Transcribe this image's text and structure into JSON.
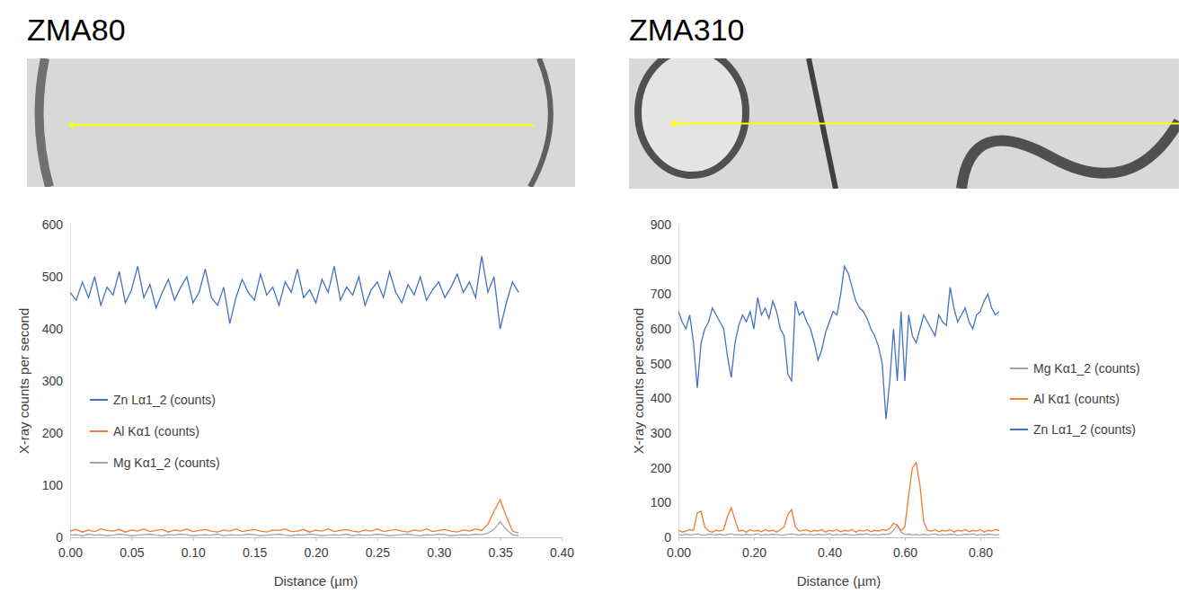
{
  "chart_data": [
    {
      "type": "line",
      "title": "ZMA80",
      "x_label": "Distance (µm)",
      "y_label": "X-ray counts per second",
      "x": [
        0.0,
        0.005,
        0.01,
        0.015,
        0.02,
        0.025,
        0.03,
        0.035,
        0.04,
        0.045,
        0.05,
        0.055,
        0.06,
        0.065,
        0.07,
        0.075,
        0.08,
        0.085,
        0.09,
        0.095,
        0.1,
        0.105,
        0.11,
        0.115,
        0.12,
        0.125,
        0.13,
        0.135,
        0.14,
        0.145,
        0.15,
        0.155,
        0.16,
        0.165,
        0.17,
        0.175,
        0.18,
        0.185,
        0.19,
        0.195,
        0.2,
        0.205,
        0.21,
        0.215,
        0.22,
        0.225,
        0.23,
        0.235,
        0.24,
        0.245,
        0.25,
        0.255,
        0.26,
        0.265,
        0.27,
        0.275,
        0.28,
        0.285,
        0.29,
        0.295,
        0.3,
        0.305,
        0.31,
        0.315,
        0.32,
        0.325,
        0.33,
        0.335,
        0.34,
        0.345,
        0.35,
        0.355,
        0.36,
        0.365
      ],
      "series": [
        {
          "name": "Zn Lα1_2 (counts)",
          "color": "#4472c4",
          "values": [
            470,
            455,
            490,
            460,
            500,
            445,
            480,
            465,
            510,
            450,
            475,
            520,
            460,
            485,
            440,
            470,
            495,
            455,
            480,
            500,
            450,
            470,
            515,
            460,
            445,
            480,
            410,
            460,
            495,
            470,
            455,
            505,
            465,
            480,
            445,
            490,
            470,
            515,
            460,
            475,
            450,
            495,
            470,
            520,
            455,
            480,
            465,
            500,
            445,
            475,
            490,
            460,
            510,
            470,
            450,
            485,
            465,
            500,
            455,
            475,
            490,
            460,
            480,
            505,
            470,
            490,
            460,
            540,
            470,
            500,
            400,
            450,
            490,
            470
          ]
        },
        {
          "name": "Al Kα1 (counts)",
          "color": "#ed7d31",
          "values": [
            12,
            15,
            10,
            14,
            11,
            16,
            13,
            12,
            15,
            10,
            14,
            12,
            16,
            11,
            13,
            15,
            10,
            14,
            12,
            16,
            11,
            13,
            15,
            12,
            10,
            14,
            12,
            16,
            11,
            13,
            15,
            12,
            10,
            14,
            13,
            16,
            11,
            12,
            15,
            10,
            14,
            12,
            16,
            11,
            13,
            15,
            12,
            10,
            14,
            12,
            16,
            11,
            13,
            15,
            12,
            10,
            14,
            12,
            16,
            11,
            13,
            15,
            12,
            10,
            14,
            12,
            16,
            13,
            25,
            50,
            72,
            40,
            12,
            8
          ]
        },
        {
          "name": "Mg Kα1_2 (counts)",
          "color": "#a5a5a5",
          "values": [
            4,
            5,
            3,
            6,
            4,
            5,
            3,
            4,
            6,
            5,
            3,
            4,
            5,
            6,
            4,
            3,
            5,
            4,
            6,
            5,
            3,
            4,
            5,
            4,
            6,
            3,
            5,
            4,
            4,
            6,
            5,
            3,
            4,
            5,
            6,
            4,
            3,
            5,
            4,
            6,
            5,
            3,
            4,
            5,
            4,
            6,
            3,
            5,
            4,
            4,
            6,
            5,
            3,
            4,
            5,
            6,
            4,
            3,
            5,
            4,
            6,
            5,
            3,
            4,
            5,
            4,
            6,
            5,
            8,
            15,
            30,
            15,
            5,
            3
          ]
        }
      ],
      "xlim": [
        0,
        0.4
      ],
      "xticks": [
        {
          "value": 0,
          "label": "0.00"
        },
        {
          "value": 0.05,
          "label": "0.05"
        },
        {
          "value": 0.1,
          "label": "0.10"
        },
        {
          "value": 0.15,
          "label": "0.15"
        },
        {
          "value": 0.2,
          "label": "0.20"
        },
        {
          "value": 0.25,
          "label": "0.25"
        },
        {
          "value": 0.3,
          "label": "0.30"
        },
        {
          "value": 0.35,
          "label": "0.35"
        },
        {
          "value": 0.4,
          "label": "0.40"
        }
      ],
      "ylim": [
        0,
        600
      ],
      "yticks": [
        0,
        100,
        200,
        300,
        400,
        500,
        600
      ],
      "grid": false,
      "legend": "left"
    },
    {
      "type": "line",
      "title": "ZMA310",
      "x_label": "Distance (µm)",
      "y_label": "X-ray counts per second",
      "x": [
        0.0,
        0.01,
        0.02,
        0.03,
        0.04,
        0.05,
        0.06,
        0.07,
        0.08,
        0.09,
        0.1,
        0.11,
        0.12,
        0.13,
        0.14,
        0.15,
        0.16,
        0.17,
        0.18,
        0.19,
        0.2,
        0.21,
        0.22,
        0.23,
        0.24,
        0.25,
        0.26,
        0.27,
        0.28,
        0.29,
        0.3,
        0.31,
        0.32,
        0.33,
        0.34,
        0.35,
        0.36,
        0.37,
        0.38,
        0.39,
        0.4,
        0.41,
        0.42,
        0.43,
        0.44,
        0.45,
        0.46,
        0.47,
        0.48,
        0.49,
        0.5,
        0.51,
        0.52,
        0.53,
        0.54,
        0.55,
        0.56,
        0.57,
        0.58,
        0.59,
        0.6,
        0.61,
        0.62,
        0.63,
        0.64,
        0.65,
        0.66,
        0.67,
        0.68,
        0.69,
        0.7,
        0.71,
        0.72,
        0.73,
        0.74,
        0.75,
        0.76,
        0.77,
        0.78,
        0.79,
        0.8,
        0.81,
        0.82,
        0.83,
        0.84,
        0.85
      ],
      "series": [
        {
          "name": "Mg Kα1_2 (counts)",
          "color": "#a5a5a5",
          "values": [
            8,
            6,
            9,
            7,
            8,
            10,
            7,
            6,
            9,
            8,
            7,
            9,
            6,
            8,
            10,
            7,
            8,
            6,
            9,
            7,
            8,
            10,
            6,
            8,
            7,
            9,
            8,
            6,
            7,
            9,
            10,
            8,
            6,
            9,
            7,
            8,
            6,
            9,
            7,
            8,
            10,
            6,
            8,
            7,
            9,
            8,
            6,
            7,
            9,
            8,
            10,
            6,
            8,
            7,
            9,
            8,
            10,
            20,
            35,
            15,
            8,
            9,
            7,
            8,
            6,
            9,
            7,
            8,
            10,
            6,
            8,
            7,
            9,
            8,
            6,
            7,
            9,
            8,
            10,
            6,
            8,
            7,
            9,
            8,
            6,
            8
          ]
        },
        {
          "name": "Al Kα1 (counts)",
          "color": "#ed7d31",
          "values": [
            20,
            15,
            18,
            22,
            20,
            70,
            75,
            30,
            18,
            15,
            20,
            18,
            22,
            60,
            85,
            50,
            18,
            20,
            15,
            22,
            18,
            20,
            16,
            22,
            18,
            20,
            15,
            22,
            30,
            65,
            80,
            30,
            18,
            20,
            22,
            16,
            20,
            18,
            22,
            15,
            20,
            18,
            22,
            16,
            20,
            18,
            22,
            15,
            20,
            18,
            22,
            16,
            20,
            18,
            22,
            20,
            25,
            40,
            35,
            20,
            30,
            120,
            200,
            215,
            150,
            45,
            20,
            18,
            22,
            16,
            20,
            18,
            22,
            15,
            20,
            18,
            22,
            16,
            20,
            18,
            22,
            15,
            20,
            18,
            22,
            20
          ]
        },
        {
          "name": "Zn Lα1_2 (counts)",
          "color": "#4472c4",
          "values": [
            650,
            620,
            600,
            640,
            560,
            430,
            560,
            600,
            620,
            660,
            640,
            620,
            600,
            520,
            460,
            560,
            610,
            640,
            620,
            650,
            600,
            690,
            640,
            660,
            630,
            680,
            650,
            600,
            580,
            470,
            450,
            680,
            640,
            650,
            620,
            600,
            560,
            510,
            540,
            590,
            620,
            650,
            640,
            700,
            780,
            760,
            720,
            680,
            660,
            650,
            630,
            600,
            580,
            550,
            500,
            340,
            450,
            600,
            450,
            650,
            450,
            640,
            580,
            560,
            600,
            640,
            620,
            600,
            580,
            640,
            620,
            610,
            720,
            660,
            620,
            640,
            660,
            620,
            600,
            640,
            650,
            680,
            700,
            660,
            640,
            650
          ]
        }
      ],
      "xlim": [
        0,
        0.85
      ],
      "xticks": [
        {
          "value": 0,
          "label": "0.00"
        },
        {
          "value": 0.2,
          "label": "0.20"
        },
        {
          "value": 0.4,
          "label": "0.40"
        },
        {
          "value": 0.6,
          "label": "0.60"
        },
        {
          "value": 0.8,
          "label": "0.80"
        }
      ],
      "ylim": [
        0,
        900
      ],
      "yticks": [
        0,
        100,
        200,
        300,
        400,
        500,
        600,
        700,
        800,
        900
      ],
      "grid": false,
      "legend": "right"
    }
  ]
}
